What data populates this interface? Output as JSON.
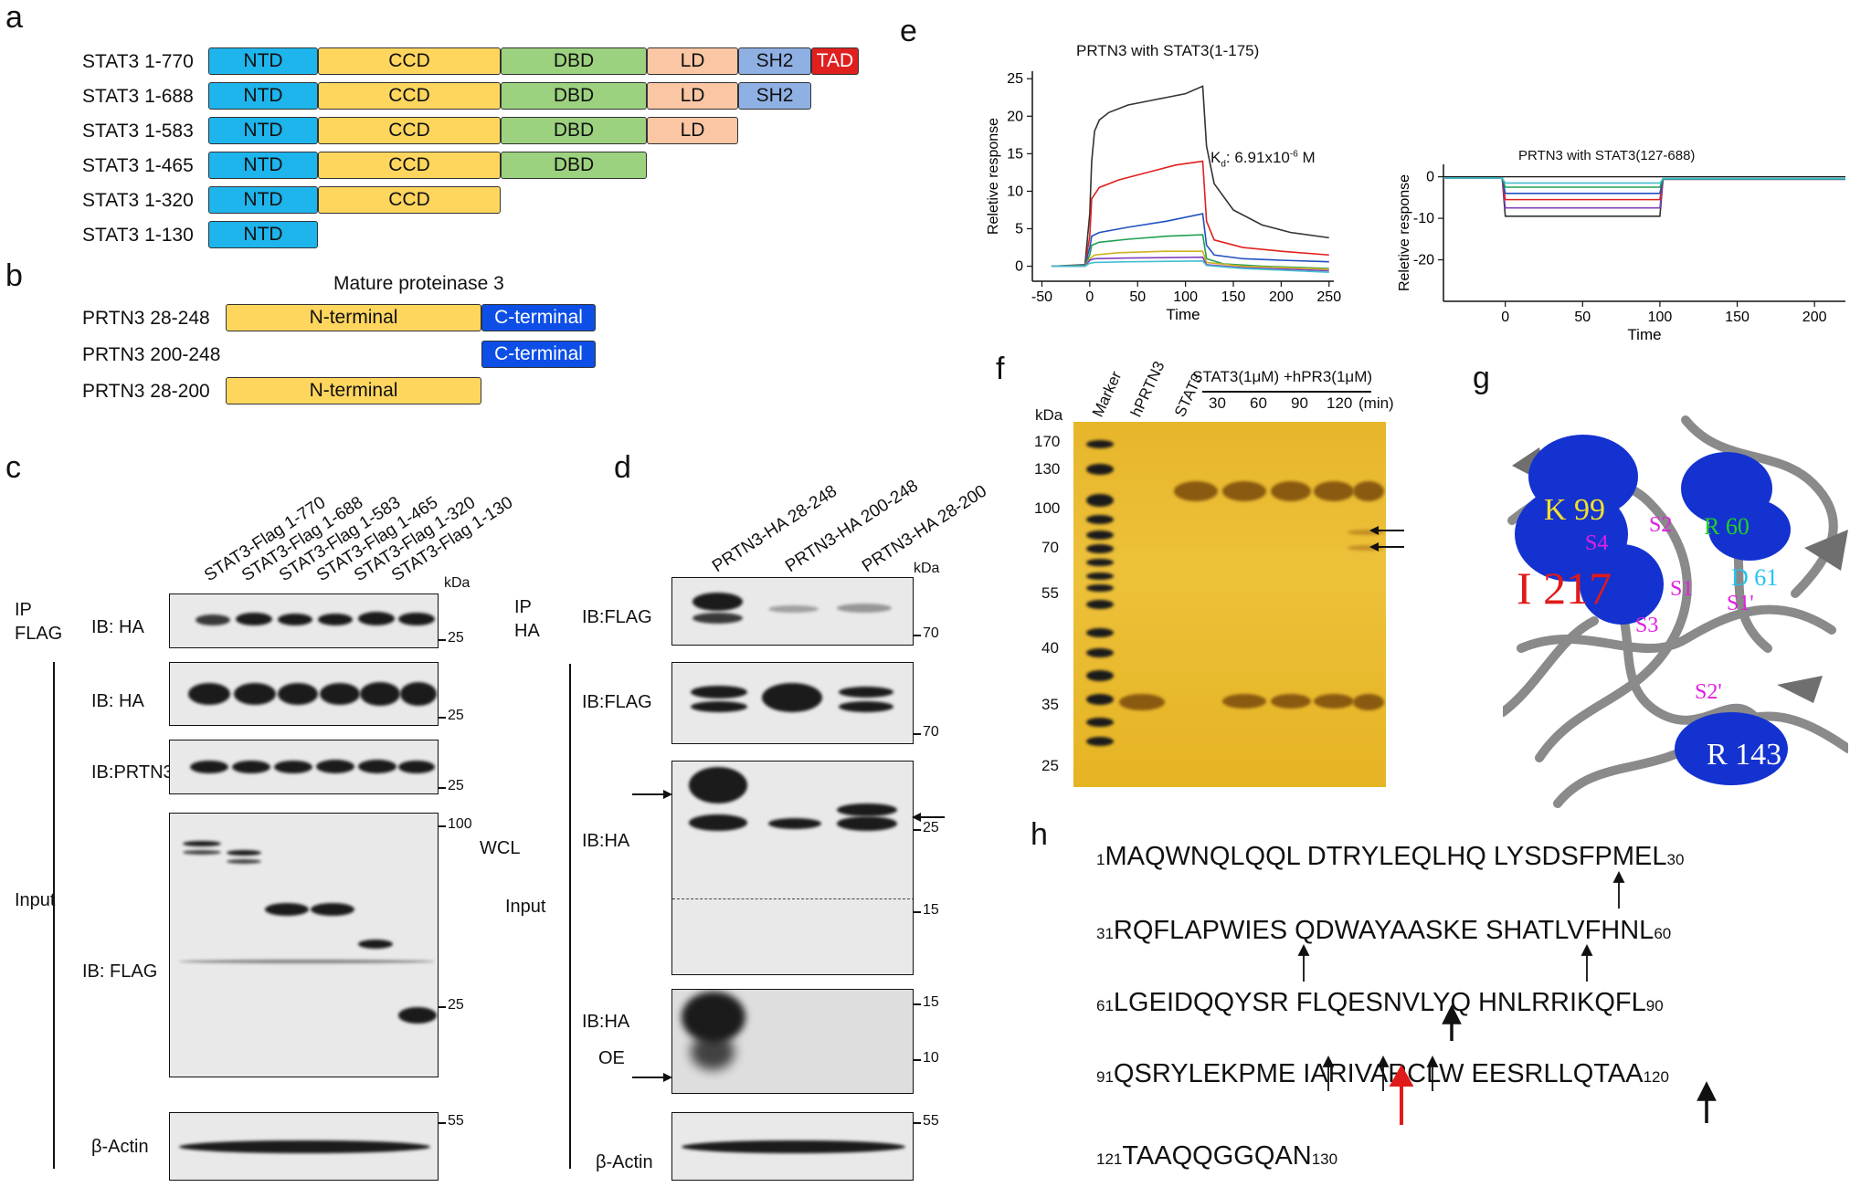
{
  "panel_a": {
    "letter": "a",
    "rows": [
      {
        "label": "STAT3 1-770",
        "domains": [
          "NTD",
          "CCD",
          "DBD",
          "LD",
          "SH2",
          "TAD"
        ]
      },
      {
        "label": "STAT3 1-688",
        "domains": [
          "NTD",
          "CCD",
          "DBD",
          "LD",
          "SH2"
        ]
      },
      {
        "label": "STAT3 1-583",
        "domains": [
          "NTD",
          "CCD",
          "DBD",
          "LD"
        ]
      },
      {
        "label": "STAT3 1-465",
        "domains": [
          "NTD",
          "CCD",
          "DBD"
        ]
      },
      {
        "label": "STAT3 1-320",
        "domains": [
          "NTD",
          "CCD"
        ]
      },
      {
        "label": "STAT3 1-130",
        "domains": [
          "NTD"
        ]
      }
    ],
    "colors": {
      "NTD": "#1eb4ec",
      "CCD": "#fed65e",
      "DBD": "#9cd27f",
      "LD": "#fbc6a4",
      "SH2": "#8fb0e3",
      "TAD": "#e01f1f"
    }
  },
  "panel_b": {
    "letter": "b",
    "title": "Mature proteinase 3",
    "rows": [
      {
        "label": "PRTN3 28-248",
        "n": "N-terminal",
        "c": "C-terminal"
      },
      {
        "label": "PRTN3 200-248",
        "c": "C-terminal"
      },
      {
        "label": "PRTN3 28-200",
        "n": "N-terminal"
      }
    ],
    "colors": {
      "N": "#fed65e",
      "C": "#0d4fe6"
    }
  },
  "panel_c": {
    "letter": "c",
    "lanes": [
      "STAT3-Flag 1-770",
      "STAT3-Flag 1-688",
      "STAT3-Flag 1-583",
      "STAT3-Flag 1-465",
      "STAT3-Flag 1-320",
      "STAT3-Flag 1-130"
    ],
    "kda": "kDa",
    "ip": "IP\nFLAG",
    "ip_line1": "IP",
    "ip_line2": "FLAG",
    "input": "Input",
    "wcl": "WCL",
    "blots": [
      {
        "ib": "IB: HA",
        "markers": [
          "25"
        ]
      },
      {
        "ib": "IB: HA",
        "markers": [
          "25"
        ]
      },
      {
        "ib": "IB:PRTN3",
        "markers": [
          "25"
        ]
      },
      {
        "ib": "IB: FLAG",
        "markers": [
          "100",
          "25"
        ]
      },
      {
        "ib": "β-Actin",
        "markers": [
          "55"
        ]
      }
    ]
  },
  "panel_d": {
    "letter": "d",
    "lanes": [
      "PRTN3-HA 28-248",
      "PRTN3-HA 200-248",
      "PRTN3-HA 28-200"
    ],
    "kda": "kDa",
    "ip_line1": "IP",
    "ip_line2": "HA",
    "input": "Input",
    "oe": "OE",
    "blots": [
      {
        "ib": "IB:FLAG",
        "markers": [
          "70"
        ]
      },
      {
        "ib": "IB:FLAG",
        "markers": [
          "70"
        ]
      },
      {
        "ib": "IB:HA",
        "markers": [
          "25",
          "15"
        ]
      },
      {
        "ib": "IB:HA",
        "markers": [
          "15",
          "10"
        ]
      },
      {
        "ib": "β-Actin",
        "markers": [
          "55"
        ]
      }
    ]
  },
  "panel_e": {
    "letter": "e",
    "chart_data": [
      {
        "type": "line",
        "title": "PRTN3 with STAT3(1-175)",
        "xlabel": "Time",
        "ylabel": "Reletive response",
        "xlim": [
          -60,
          255
        ],
        "ylim": [
          -2,
          26
        ],
        "xticks": [
          -50,
          0,
          50,
          100,
          150,
          200,
          250
        ],
        "yticks": [
          0,
          5,
          10,
          15,
          20,
          25
        ],
        "annotation": "Kd: 6.91x10-6 M",
        "kd_main": "K",
        "kd_sub": "d",
        "kd_rest": ": 6.91x10",
        "kd_sup": "-6",
        "kd_unit": " M",
        "series": [
          {
            "color": "#333333",
            "x": [
              -40,
              -5,
              0,
              2,
              5,
              10,
              20,
              40,
              60,
              80,
              100,
              118,
              122,
              130,
              150,
              180,
              210,
              250
            ],
            "y": [
              0,
              0.2,
              7,
              14,
              18,
              19.5,
              20.5,
              21.5,
              22,
              22.5,
              23,
              24,
              16,
              11,
              7.5,
              5.5,
              4.5,
              3.8
            ]
          },
          {
            "color": "#e02020",
            "x": [
              -40,
              -5,
              0,
              2,
              10,
              30,
              60,
              90,
              118,
              122,
              130,
              160,
              200,
              250
            ],
            "y": [
              0,
              0.1,
              4,
              9,
              10.5,
              11.5,
              12.5,
              13.5,
              14,
              6,
              3.5,
              2.5,
              2,
              1.5
            ]
          },
          {
            "color": "#2050c0",
            "x": [
              -40,
              -5,
              0,
              2,
              10,
              40,
              80,
              118,
              122,
              130,
              160,
              200,
              250
            ],
            "y": [
              0,
              0.1,
              2.5,
              4,
              4.5,
              5.2,
              6,
              7,
              2.8,
              1.5,
              1,
              0.8,
              0.6
            ]
          },
          {
            "color": "#20a050",
            "x": [
              -40,
              -5,
              0,
              2,
              10,
              40,
              80,
              118,
              122,
              140,
              180,
              250
            ],
            "y": [
              0,
              0.1,
              1.5,
              2.8,
              3.2,
              3.6,
              4,
              4.2,
              1,
              0.3,
              0,
              -0.3
            ]
          },
          {
            "color": "#d0b020",
            "x": [
              -40,
              -5,
              0,
              5,
              30,
              80,
              118,
              122,
              160,
              250
            ],
            "y": [
              0,
              0,
              1,
              1.5,
              1.8,
              2,
              2,
              0.5,
              0,
              -0.4
            ]
          },
          {
            "color": "#8040c0",
            "x": [
              -40,
              -5,
              0,
              5,
              40,
              118,
              122,
              160,
              250
            ],
            "y": [
              0,
              0,
              0.8,
              1,
              1.1,
              1.2,
              0.2,
              -0.2,
              -0.6
            ]
          },
          {
            "color": "#40c0d0",
            "x": [
              -40,
              -5,
              0,
              5,
              40,
              118,
              122,
              160,
              250
            ],
            "y": [
              0,
              0,
              0.4,
              0.5,
              0.6,
              0.7,
              0.1,
              -0.3,
              -0.8
            ]
          }
        ]
      },
      {
        "type": "line",
        "title": "PRTN3 with STAT3(127-688)",
        "xlabel": "Time",
        "ylabel": "Reletive response",
        "xlim": [
          -40,
          220
        ],
        "ylim": [
          -30,
          3
        ],
        "xticks": [
          0,
          50,
          100,
          150,
          200
        ],
        "yticks": [
          0,
          -10,
          -20
        ],
        "series": [
          {
            "color": "#333333",
            "x": [
              -40,
              -2,
              0,
              100,
              102,
              220
            ],
            "y": [
              -0.3,
              -0.3,
              -9.5,
              -9.5,
              -0.6,
              -0.6
            ]
          },
          {
            "color": "#8040c0",
            "x": [
              -40,
              -2,
              0,
              100,
              102,
              220
            ],
            "y": [
              -0.3,
              -0.3,
              -7.5,
              -7.5,
              -0.6,
              -0.6
            ]
          },
          {
            "color": "#e02020",
            "x": [
              -40,
              -2,
              0,
              100,
              102,
              220
            ],
            "y": [
              -0.3,
              -0.3,
              -5.5,
              -5.5,
              -0.5,
              -0.5
            ]
          },
          {
            "color": "#2050c0",
            "x": [
              -40,
              -2,
              0,
              100,
              102,
              220
            ],
            "y": [
              -0.3,
              -0.3,
              -4,
              -4,
              -0.5,
              -0.5
            ]
          },
          {
            "color": "#20a050",
            "x": [
              -40,
              -2,
              0,
              100,
              102,
              220
            ],
            "y": [
              -0.3,
              -0.3,
              -2.5,
              -2.5,
              -0.5,
              -0.5
            ]
          },
          {
            "color": "#40c0d0",
            "x": [
              -40,
              -2,
              0,
              100,
              102,
              220
            ],
            "y": [
              -0.3,
              -0.3,
              -1.5,
              -1.5,
              -0.4,
              -0.4
            ]
          }
        ]
      }
    ]
  },
  "panel_f": {
    "letter": "f",
    "kda": "kDa",
    "lanes_rotated": [
      "Marker",
      "hPRTN3",
      "STAT3"
    ],
    "treatment": "STAT3(1μM) +hPR3(1μM)",
    "times": [
      "30",
      "60",
      "90",
      "120"
    ],
    "time_unit": "(min)",
    "markers": [
      "170",
      "130",
      "100",
      "70",
      "55",
      "40",
      "35",
      "25"
    ]
  },
  "panel_g": {
    "letter": "g",
    "residues": [
      "K 99",
      "R 60",
      "D 61",
      "I 217",
      "R 143"
    ],
    "pockets": [
      "S4",
      "S2",
      "S1",
      "S1'",
      "S3",
      "S2'"
    ]
  },
  "panel_h": {
    "letter": "h",
    "lines": [
      {
        "start": "1",
        "seq": "MAQWNQLQQL DTRYLEQLHQ LYSDSFPMEL",
        "end": "30"
      },
      {
        "start": "31",
        "seq": "RQFLAPWIES QDWAYAASKE SHATLVFHNL",
        "end": "60"
      },
      {
        "start": "61",
        "seq": "LGEIDQQYSR FLQESNVLYQ HNLRRIKQFL",
        "end": "90"
      },
      {
        "start": "91",
        "seq": "QSRYLEKPME IARIVARCLW EESRLLQTAA",
        "end": "120"
      },
      {
        "start": "121",
        "seq": "TAAQQGGQAN",
        "end": "130"
      }
    ]
  }
}
